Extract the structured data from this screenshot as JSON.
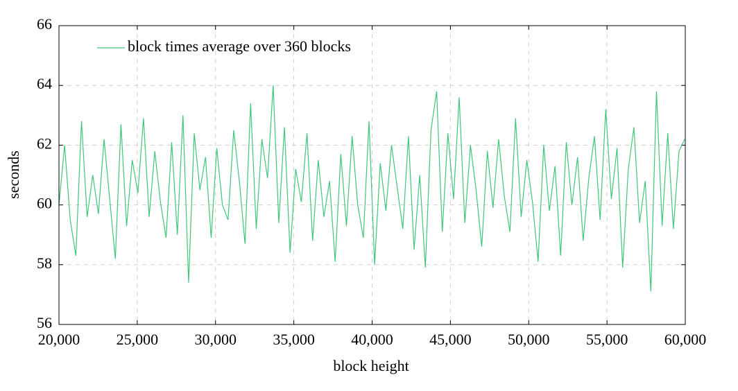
{
  "chart_data": {
    "type": "line",
    "xlabel": "block height",
    "ylabel": "seconds",
    "xlim": [
      20000,
      60000
    ],
    "ylim": [
      56,
      66
    ],
    "xticks": [
      {
        "value": 20000,
        "label": "20,000"
      },
      {
        "value": 25000,
        "label": "25,000"
      },
      {
        "value": 30000,
        "label": "30,000"
      },
      {
        "value": 35000,
        "label": "35,000"
      },
      {
        "value": 40000,
        "label": "40,000"
      },
      {
        "value": 45000,
        "label": "45,000"
      },
      {
        "value": 50000,
        "label": "50,000"
      },
      {
        "value": 55000,
        "label": "55,000"
      },
      {
        "value": 60000,
        "label": "60,000"
      }
    ],
    "yticks": [
      56,
      58,
      60,
      62,
      64,
      66
    ],
    "grid": true,
    "legend": "upper left",
    "x": [
      20000,
      20360,
      20720,
      21080,
      21440,
      21800,
      22160,
      22520,
      22880,
      23240,
      23600,
      23960,
      24320,
      24680,
      25040,
      25400,
      25760,
      26120,
      26480,
      26840,
      27200,
      27560,
      27920,
      28280,
      28640,
      29000,
      29360,
      29720,
      30080,
      30440,
      30800,
      31160,
      31520,
      31880,
      32240,
      32600,
      32960,
      33320,
      33680,
      34040,
      34400,
      34760,
      35120,
      35480,
      35840,
      36200,
      36560,
      36920,
      37280,
      37640,
      38000,
      38360,
      38720,
      39080,
      39440,
      39800,
      40160,
      40520,
      40880,
      41240,
      41600,
      41960,
      42320,
      42680,
      43040,
      43400,
      43760,
      44120,
      44480,
      44840,
      45200,
      45560,
      45920,
      46280,
      46640,
      47000,
      47360,
      47720,
      48080,
      48440,
      48800,
      49160,
      49520,
      49880,
      50240,
      50600,
      50960,
      51320,
      51680,
      52040,
      52400,
      52760,
      53120,
      53480,
      53840,
      54200,
      54560,
      54920,
      55280,
      55640,
      56000,
      56360,
      56720,
      57080,
      57440,
      57800,
      58160,
      58520,
      58880,
      59240,
      59600,
      59960
    ],
    "series": [
      {
        "name": "block times average over 360 blocks",
        "color": "#3ec77a",
        "values": [
          60.0,
          62.0,
          59.5,
          58.3,
          62.8,
          59.6,
          61.0,
          59.7,
          62.2,
          60.2,
          58.2,
          62.7,
          59.3,
          61.5,
          60.4,
          62.9,
          59.6,
          61.8,
          60.1,
          58.9,
          62.1,
          59.0,
          63.0,
          57.4,
          62.4,
          60.5,
          61.6,
          58.9,
          61.9,
          60.0,
          59.5,
          62.5,
          60.8,
          58.7,
          63.4,
          59.2,
          62.2,
          60.9,
          64.0,
          59.4,
          62.6,
          58.4,
          61.2,
          60.1,
          62.4,
          58.8,
          61.5,
          59.6,
          60.8,
          58.1,
          61.7,
          59.3,
          62.3,
          60.0,
          58.9,
          62.8,
          58.0,
          61.4,
          59.8,
          62.0,
          60.6,
          59.2,
          62.3,
          58.5,
          61.0,
          57.9,
          62.5,
          63.8,
          59.1,
          62.4,
          60.2,
          63.6,
          59.4,
          62.0,
          60.5,
          58.6,
          61.8,
          59.9,
          62.2,
          60.3,
          59.1,
          62.9,
          59.6,
          61.5,
          60.1,
          58.1,
          62.0,
          59.8,
          61.3,
          58.3,
          62.1,
          60.0,
          61.6,
          58.8,
          60.9,
          62.3,
          59.5,
          63.2,
          60.2,
          61.9,
          57.9,
          61.2,
          62.6,
          59.4,
          60.8,
          57.1,
          63.8,
          59.3,
          62.4,
          59.2,
          61.8,
          62.2
        ]
      }
    ]
  }
}
